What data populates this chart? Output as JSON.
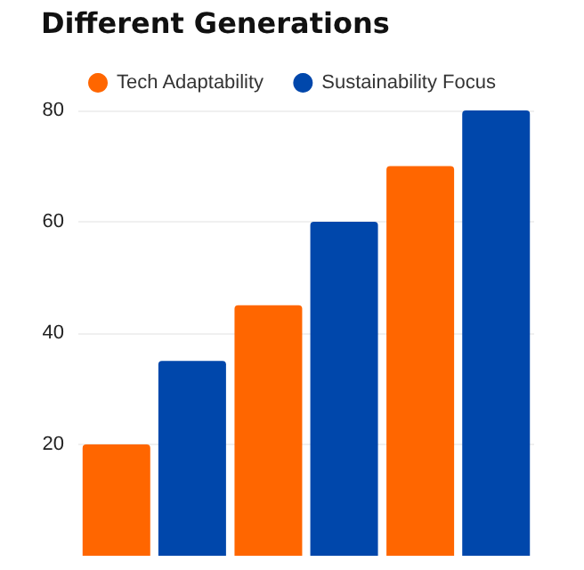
{
  "chart_data": {
    "type": "bar",
    "title": "Different Generations",
    "categories": [
      null,
      null,
      null
    ],
    "series": [
      {
        "name": "Tech Adaptability",
        "color": "#ff6600",
        "values": [
          20,
          45,
          70
        ]
      },
      {
        "name": "Sustainability Focus",
        "color": "#0047ab",
        "values": [
          35,
          60,
          80
        ]
      }
    ],
    "ylim": [
      0,
      80
    ],
    "yticks": [
      20,
      40,
      60,
      80
    ],
    "grid": "y",
    "legend": "top"
  }
}
